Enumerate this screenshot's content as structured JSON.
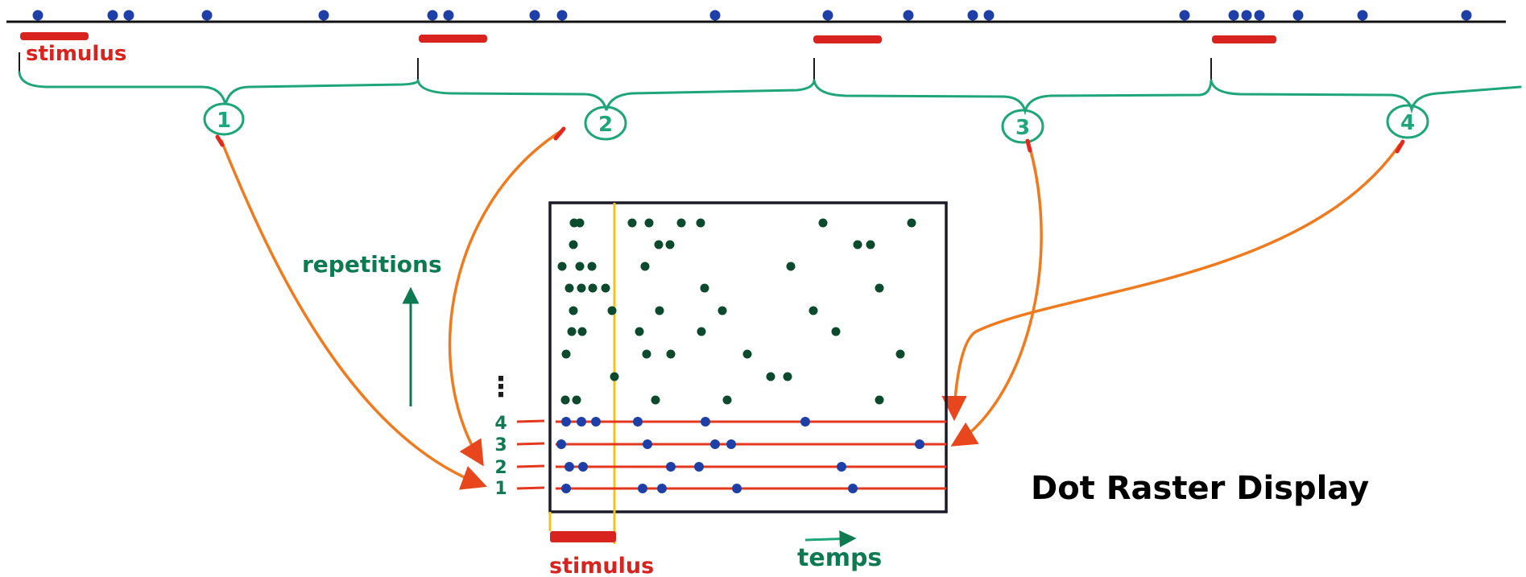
{
  "labels": {
    "stimulus_top": "stimulus",
    "stimulus_bottom": "stimulus",
    "repetitions": "repetitions",
    "temps": "temps",
    "title": "Dot Raster Display",
    "ellipsis": "⋮"
  },
  "trials": [
    {
      "number": "1"
    },
    {
      "number": "2"
    },
    {
      "number": "3"
    },
    {
      "number": "4"
    }
  ],
  "raster_row_labels": [
    "1",
    "2",
    "3",
    "4"
  ],
  "colors": {
    "spike_dot": "#1f3fa8",
    "stimulus_bar": "#d8231f",
    "trial_bracket": "#1ea67a",
    "arrow": "#f07a1e",
    "stimulus_marker": "#f0c419",
    "raster_dot": "#0c4a2e",
    "raster_line": "#e3381f",
    "frame": "#1a1a2a"
  }
}
